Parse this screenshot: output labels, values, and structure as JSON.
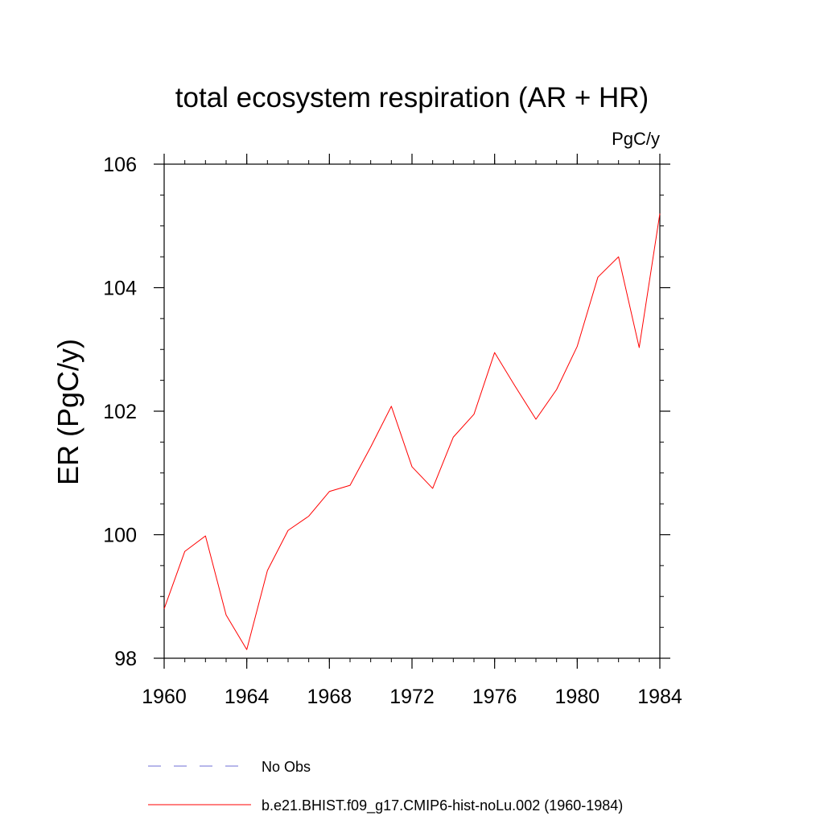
{
  "chart_data": {
    "type": "line",
    "title": "total ecosystem respiration (AR + HR)",
    "units_label": "PgC/y",
    "ylabel": "ER  (PgC/y)",
    "xlabel": "",
    "xlim": [
      1960,
      1984
    ],
    "ylim": [
      98,
      106
    ],
    "x_ticks": [
      1960,
      1964,
      1968,
      1972,
      1976,
      1980,
      1984
    ],
    "y_ticks": [
      98,
      100,
      102,
      104,
      106
    ],
    "x_minor_step": 1,
    "y_minor_step": 0.5,
    "grid": false,
    "legend_position": "bottom",
    "series": [
      {
        "name": "No Obs",
        "color": "#6f6fd6",
        "dash": "dashed",
        "x": [],
        "values": []
      },
      {
        "name": "b.e21.BHIST.f09_g17.CMIP6-hist-noLu.002 (1960-1984)",
        "color": "#ff0000",
        "dash": "solid",
        "x": [
          1960,
          1961,
          1962,
          1963,
          1964,
          1965,
          1966,
          1967,
          1968,
          1969,
          1970,
          1971,
          1972,
          1973,
          1974,
          1975,
          1976,
          1977,
          1978,
          1979,
          1980,
          1981,
          1982,
          1983,
          1984
        ],
        "values": [
          98.8,
          99.73,
          99.98,
          98.7,
          98.14,
          99.42,
          100.07,
          100.3,
          100.7,
          100.8,
          101.42,
          102.08,
          101.1,
          100.75,
          101.58,
          101.95,
          102.95,
          102.4,
          101.87,
          102.35,
          103.05,
          104.17,
          104.5,
          103.03,
          105.2
        ]
      }
    ]
  }
}
